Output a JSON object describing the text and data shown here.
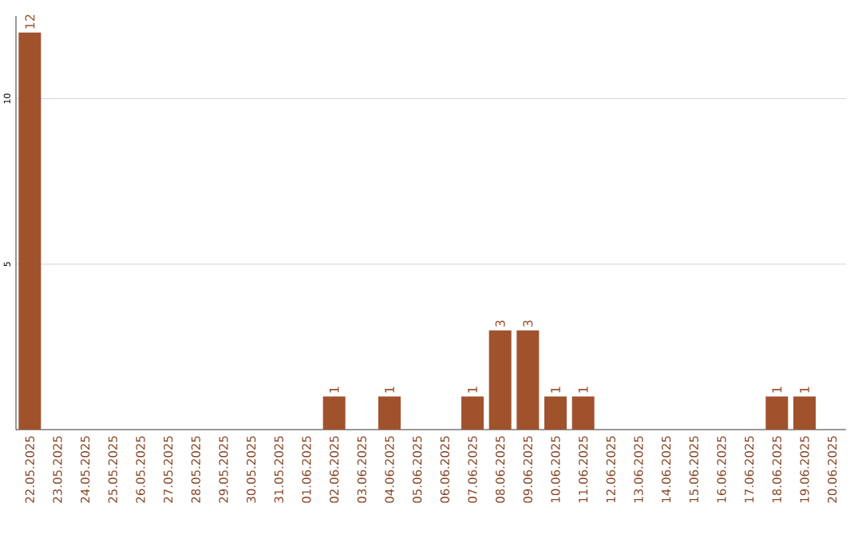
{
  "chart_data": {
    "type": "bar",
    "categories": [
      "22.05.2025",
      "23.05.2025",
      "24.05.2025",
      "25.05.2025",
      "26.05.2025",
      "27.05.2025",
      "28.05.2025",
      "29.05.2025",
      "30.05.2025",
      "31.05.2025",
      "01.06.2025",
      "02.06.2025",
      "03.06.2025",
      "04.06.2025",
      "05.06.2025",
      "06.06.2025",
      "07.06.2025",
      "08.06.2025",
      "09.06.2025",
      "10.06.2025",
      "11.06.2025",
      "12.06.2025",
      "13.06.2025",
      "14.06.2025",
      "15.06.2025",
      "16.06.2025",
      "17.06.2025",
      "18.06.2025",
      "19.06.2025",
      "20.06.2025"
    ],
    "values": [
      12,
      0,
      0,
      0,
      0,
      0,
      0,
      0,
      0,
      0,
      0,
      1,
      0,
      1,
      0,
      0,
      1,
      3,
      3,
      1,
      1,
      0,
      0,
      0,
      0,
      0,
      0,
      1,
      1,
      0
    ],
    "value_labels": [
      "12",
      null,
      null,
      null,
      null,
      null,
      null,
      null,
      null,
      null,
      null,
      "1",
      null,
      "1",
      null,
      null,
      "1",
      "3",
      "3",
      "1",
      "1",
      null,
      null,
      null,
      null,
      null,
      null,
      "1",
      "1",
      null
    ],
    "color": "#a0522d",
    "ylim": [
      0,
      12.5
    ],
    "yticks": [
      5,
      10
    ],
    "grid": "y"
  }
}
